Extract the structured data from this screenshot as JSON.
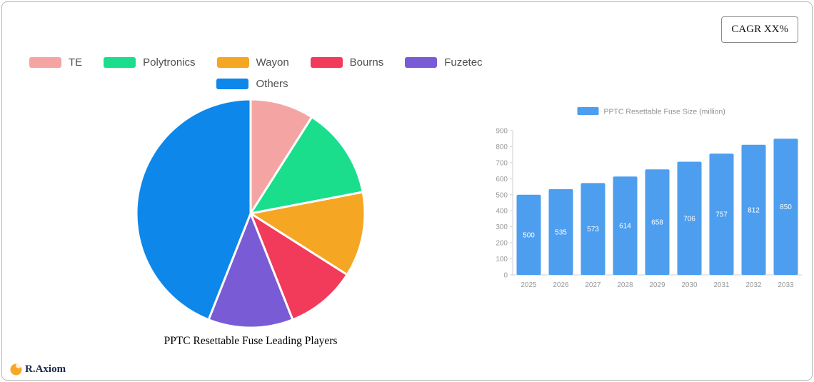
{
  "header": {
    "cagr_label": "CAGR XX%"
  },
  "footer": {
    "logo_text": "R.Axiom",
    "logo_icon_color": "#F7A823",
    "logo_text_color": "#1B2A4A"
  },
  "legend_layout": {
    "first_row_count": 5
  },
  "chart_data": [
    {
      "type": "pie",
      "title": "PPTC Resettable Fuse Leading Players",
      "labels": [
        "TE",
        "Polytronics",
        "Wayon",
        "Bourns",
        "Fuzetec",
        "Others"
      ],
      "values": [
        9,
        13,
        12,
        10,
        12,
        44
      ],
      "colors": [
        "#F4A5A3",
        "#1BDE8D",
        "#F5A623",
        "#F23A5B",
        "#7A5BD6",
        "#0D87E9"
      ],
      "start_angle_deg": -90,
      "legend_position": "top"
    },
    {
      "type": "bar",
      "legend_label": "PPTC Resettable Fuse Size (million)",
      "categories": [
        "2025",
        "2026",
        "2027",
        "2028",
        "2029",
        "2030",
        "2031",
        "2032",
        "2033"
      ],
      "values": [
        500,
        535,
        573,
        614,
        658,
        706,
        757,
        812,
        850
      ],
      "bar_color": "#4D9EEF",
      "ylim": [
        0,
        900
      ],
      "ytick_step": 100,
      "grid": false,
      "value_labels": "inside-white",
      "axis_label_color": "#999999"
    }
  ]
}
